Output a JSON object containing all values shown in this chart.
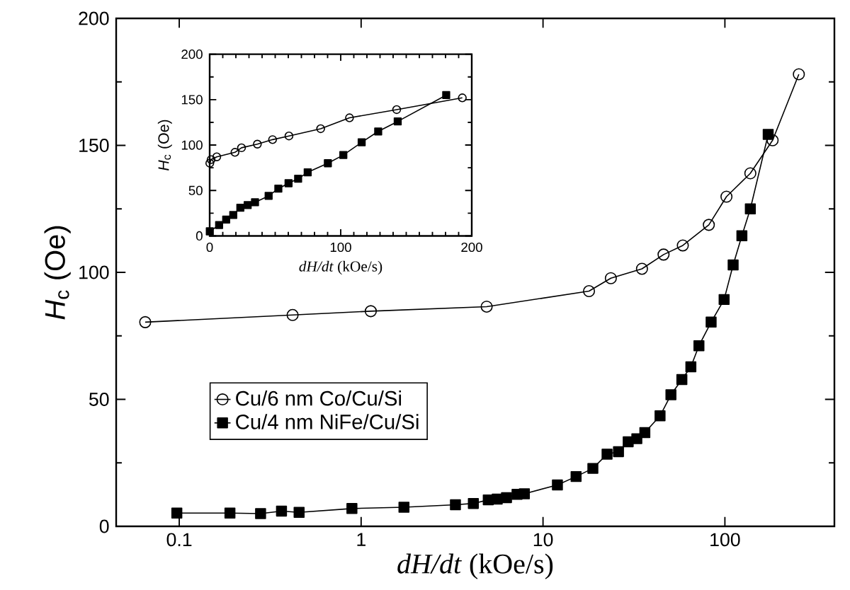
{
  "chart_data": [
    {
      "type": "line",
      "xlabel": "*dH/dt* (kOe/s)",
      "ylabel": "*H*$_{c}$ (Oe)",
      "log": "x",
      "xlim": [
        0.045,
        400
      ],
      "xticks": [
        0.1,
        1,
        10,
        100
      ],
      "ylim": [
        0,
        200
      ],
      "yticks": [
        0,
        50,
        100,
        150,
        200
      ],
      "legend": "bottom left",
      "series": [
        {
          "name": "Cu/6 nm Co/Cu/Si",
          "color": "#000000",
          "marker": "circle",
          "line_style": "solid",
          "x": [
            0.065,
            0.42,
            1.13,
            4.9,
            17.9,
            23.6,
            35,
            46,
            58.7,
            81.6,
            102,
            138,
            183,
            255
          ],
          "values": [
            80.4,
            83.2,
            84.7,
            86.5,
            92.6,
            97.7,
            101.4,
            107,
            110.6,
            118.7,
            129.8,
            139,
            152,
            178
          ]
        },
        {
          "name": "Cu/4 nm NiFe/Cu/Si",
          "color": "#000000",
          "marker": "square",
          "line_style": "solid",
          "x": [
            0.097,
            0.19,
            0.28,
            0.365,
            0.456,
            0.89,
            1.72,
            3.3,
            4.14,
            5.0,
            5.6,
            6.3,
            7.2,
            7.9,
            12,
            15.2,
            18.8,
            22.5,
            26,
            29.4,
            32.8,
            36.3,
            44,
            50.5,
            58,
            65,
            72,
            84,
            99,
            111,
            124,
            138,
            173
          ],
          "values": [
            5.2,
            5.2,
            5,
            6,
            5.5,
            7,
            7.5,
            8.5,
            9,
            10.4,
            10.7,
            11.3,
            12.6,
            12.8,
            16.3,
            19.6,
            22.8,
            28.4,
            29.4,
            33.3,
            34.5,
            36.9,
            43.5,
            51.8,
            57.8,
            62.8,
            71.1,
            80.4,
            89.3,
            102.9,
            114.4,
            125,
            154.3
          ]
        }
      ]
    },
    {
      "type": "line",
      "xlabel": "*dH/dt* (kOe/s)",
      "ylabel": "*H*$_{c}$ (Oe)",
      "xlim": [
        0,
        200
      ],
      "xticks": [
        0,
        100,
        200
      ],
      "ylim": [
        0,
        200
      ],
      "yticks": [
        0,
        50,
        100,
        150,
        200
      ],
      "series": [
        {
          "color": "#000000",
          "marker": "circle",
          "line_style": "solid",
          "x": [
            0.1,
            1.1,
            5.4,
            19.3,
            24.3,
            36.4,
            48,
            60.5,
            84.7,
            106.7,
            142.7,
            192.8
          ],
          "values": [
            80,
            84,
            87,
            92,
            97,
            101,
            106,
            110,
            118,
            130,
            139,
            152
          ]
        },
        {
          "color": "#000000",
          "marker": "square",
          "line_style": "solid",
          "x": [
            0.1,
            7.2,
            12.6,
            18,
            23.4,
            29,
            34.6,
            45,
            52.4,
            60.2,
            67.5,
            74.8,
            90.2,
            102,
            116,
            128.6,
            143.5,
            180.5
          ],
          "values": [
            5,
            12,
            18,
            23,
            31,
            34,
            37,
            44,
            52,
            58,
            63,
            70,
            80,
            89,
            103,
            115,
            126,
            155
          ]
        }
      ]
    }
  ]
}
